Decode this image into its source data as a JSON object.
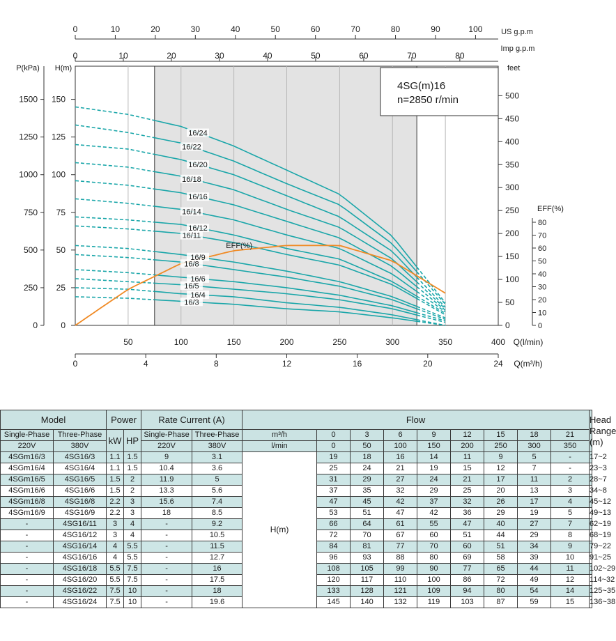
{
  "chart_data": {
    "type": "line",
    "title": "4SG(m)16",
    "subtitle": "n=2850 r/min",
    "operating_range_lmin": [
      75,
      323
    ],
    "axes": {
      "left_pressure": {
        "label": "P(kPa)",
        "ticks": [
          "1500",
          "1250",
          "1000",
          "750",
          "500",
          "250",
          "0"
        ]
      },
      "left_head": {
        "label": "H(m)",
        "ticks": [
          "150",
          "125",
          "100",
          "75",
          "50",
          "25",
          "0"
        ],
        "range": [
          0,
          172
        ]
      },
      "right_feet": {
        "label": "feet",
        "ticks": [
          "500",
          "450",
          "400",
          "350",
          "300",
          "250",
          "200",
          "150",
          "100",
          "50",
          "0"
        ]
      },
      "eff": {
        "label": "EFF(%)",
        "ticks": [
          "80",
          "70",
          "60",
          "50",
          "40",
          "30",
          "20",
          "10",
          "0"
        ]
      },
      "top_us": {
        "label": "US g.p.m",
        "ticks": [
          "0",
          "10",
          "20",
          "30",
          "40",
          "50",
          "60",
          "70",
          "80",
          "90",
          "100"
        ]
      },
      "top_imp": {
        "label": "Imp g.p.m",
        "ticks": [
          "0",
          "10",
          "20",
          "30",
          "40",
          "50",
          "60",
          "70",
          "80"
        ]
      },
      "bottom_lmin": {
        "label": "Q(l/min)",
        "ticks": [
          "50",
          "100",
          "150",
          "200",
          "250",
          "300",
          "350",
          "400"
        ],
        "range": [
          0,
          400
        ]
      },
      "bottom_m3h": {
        "label": "Q(m³/h)",
        "ticks": [
          "0",
          "4",
          "8",
          "12",
          "16",
          "20",
          "24"
        ]
      }
    },
    "x_lmin": [
      0,
      50,
      100,
      150,
      200,
      250,
      300,
      350
    ],
    "series": [
      {
        "name": "16/3",
        "values": [
          19,
          18,
          16,
          14,
          11,
          9,
          5,
          0
        ]
      },
      {
        "name": "16/4",
        "values": [
          25,
          24,
          21,
          19,
          15,
          12,
          7,
          0
        ]
      },
      {
        "name": "16/5",
        "values": [
          31,
          29,
          27,
          24,
          21,
          17,
          11,
          2
        ]
      },
      {
        "name": "16/6",
        "values": [
          37,
          35,
          32,
          29,
          25,
          20,
          13,
          3
        ]
      },
      {
        "name": "16/8",
        "values": [
          47,
          45,
          42,
          37,
          32,
          26,
          17,
          4
        ]
      },
      {
        "name": "16/9",
        "values": [
          53,
          51,
          47,
          42,
          36,
          29,
          19,
          5
        ]
      },
      {
        "name": "16/11",
        "values": [
          66,
          64,
          61,
          55,
          47,
          40,
          27,
          7
        ]
      },
      {
        "name": "16/12",
        "values": [
          72,
          70,
          67,
          60,
          51,
          44,
          29,
          8
        ]
      },
      {
        "name": "16/14",
        "values": [
          84,
          81,
          77,
          70,
          60,
          51,
          34,
          9
        ]
      },
      {
        "name": "16/16",
        "values": [
          96,
          93,
          88,
          80,
          69,
          58,
          39,
          10
        ]
      },
      {
        "name": "16/18",
        "values": [
          108,
          105,
          99,
          90,
          77,
          65,
          44,
          11
        ]
      },
      {
        "name": "16/20",
        "values": [
          120,
          117,
          110,
          100,
          86,
          72,
          49,
          12
        ]
      },
      {
        "name": "16/22",
        "values": [
          133,
          128,
          121,
          109,
          94,
          80,
          54,
          14
        ]
      },
      {
        "name": "16/24",
        "values": [
          145,
          140,
          132,
          119,
          103,
          87,
          59,
          15
        ]
      }
    ],
    "efficiency": {
      "name": "EFF(%)",
      "x_lmin": [
        0,
        50,
        100,
        150,
        200,
        250,
        300,
        350
      ],
      "values": [
        0,
        28,
        48,
        58,
        62,
        62,
        50,
        25
      ]
    }
  },
  "table": {
    "header": {
      "model": "Model",
      "power": "Power",
      "rate_current": "Rate Current (A)",
      "flow": "Flow",
      "head_range": "Head Range (m)",
      "single_phase": "Single-Phase",
      "three_phase": "Three-Phase",
      "v220": "220V",
      "v380": "380V",
      "kw": "kW",
      "hp": "HP",
      "m3h_unit": "m³/h",
      "lmin_unit": "l/min",
      "flow_m3h": [
        "0",
        "3",
        "6",
        "9",
        "12",
        "15",
        "18",
        "21"
      ],
      "flow_lmin": [
        "0",
        "50",
        "100",
        "150",
        "200",
        "250",
        "300",
        "350"
      ],
      "hm": "H(m)"
    },
    "rows": [
      {
        "single": "4SGm16/3",
        "three": "4SG16/3",
        "kw": "1.1",
        "hp": "1.5",
        "cur1": "9",
        "cur3": "3.1",
        "h": [
          "19",
          "18",
          "16",
          "14",
          "11",
          "9",
          "5",
          "-"
        ],
        "range": "17~2"
      },
      {
        "single": "4SGm16/4",
        "three": "4SG16/4",
        "kw": "1.1",
        "hp": "1.5",
        "cur1": "10.4",
        "cur3": "3.6",
        "h": [
          "25",
          "24",
          "21",
          "19",
          "15",
          "12",
          "7",
          "-"
        ],
        "range": "23~3"
      },
      {
        "single": "4SGm16/5",
        "three": "4SG16/5",
        "kw": "1.5",
        "hp": "2",
        "cur1": "11.9",
        "cur3": "5",
        "h": [
          "31",
          "29",
          "27",
          "24",
          "21",
          "17",
          "11",
          "2"
        ],
        "range": "28~7"
      },
      {
        "single": "4SGm16/6",
        "three": "4SG16/6",
        "kw": "1.5",
        "hp": "2",
        "cur1": "13.3",
        "cur3": "5.6",
        "h": [
          "37",
          "35",
          "32",
          "29",
          "25",
          "20",
          "13",
          "3"
        ],
        "range": "34~8"
      },
      {
        "single": "4SGm16/8",
        "three": "4SG16/8",
        "kw": "2.2",
        "hp": "3",
        "cur1": "15.6",
        "cur3": "7.4",
        "h": [
          "47",
          "45",
          "42",
          "37",
          "32",
          "26",
          "17",
          "4"
        ],
        "range": "45~12"
      },
      {
        "single": "4SGm16/9",
        "three": "4SG16/9",
        "kw": "2.2",
        "hp": "3",
        "cur1": "18",
        "cur3": "8.5",
        "h": [
          "53",
          "51",
          "47",
          "42",
          "36",
          "29",
          "19",
          "5"
        ],
        "range": "49~13"
      },
      {
        "single": "-",
        "three": "4SG16/11",
        "kw": "3",
        "hp": "4",
        "cur1": "-",
        "cur3": "9.2",
        "h": [
          "66",
          "64",
          "61",
          "55",
          "47",
          "40",
          "27",
          "7"
        ],
        "range": "62~19"
      },
      {
        "single": "-",
        "three": "4SG16/12",
        "kw": "3",
        "hp": "4",
        "cur1": "-",
        "cur3": "10.5",
        "h": [
          "72",
          "70",
          "67",
          "60",
          "51",
          "44",
          "29",
          "8"
        ],
        "range": "68~19"
      },
      {
        "single": "-",
        "three": "4SG16/14",
        "kw": "4",
        "hp": "5.5",
        "cur1": "-",
        "cur3": "11.5",
        "h": [
          "84",
          "81",
          "77",
          "70",
          "60",
          "51",
          "34",
          "9"
        ],
        "range": "79~22"
      },
      {
        "single": "-",
        "three": "4SG16/16",
        "kw": "4",
        "hp": "5.5",
        "cur1": "-",
        "cur3": "12.7",
        "h": [
          "96",
          "93",
          "88",
          "80",
          "69",
          "58",
          "39",
          "10"
        ],
        "range": "91~25"
      },
      {
        "single": "-",
        "three": "4SG16/18",
        "kw": "5.5",
        "hp": "7.5",
        "cur1": "-",
        "cur3": "16",
        "h": [
          "108",
          "105",
          "99",
          "90",
          "77",
          "65",
          "44",
          "11"
        ],
        "range": "102~29"
      },
      {
        "single": "-",
        "three": "4SG16/20",
        "kw": "5.5",
        "hp": "7.5",
        "cur1": "-",
        "cur3": "17.5",
        "h": [
          "120",
          "117",
          "110",
          "100",
          "86",
          "72",
          "49",
          "12"
        ],
        "range": "114~32"
      },
      {
        "single": "-",
        "three": "4SG16/22",
        "kw": "7.5",
        "hp": "10",
        "cur1": "-",
        "cur3": "18",
        "h": [
          "133",
          "128",
          "121",
          "109",
          "94",
          "80",
          "54",
          "14"
        ],
        "range": "125~35"
      },
      {
        "single": "-",
        "three": "4SG16/24",
        "kw": "7.5",
        "hp": "10",
        "cur1": "-",
        "cur3": "19.6",
        "h": [
          "145",
          "140",
          "132",
          "119",
          "103",
          "87",
          "59",
          "15"
        ],
        "range": "136~38"
      }
    ]
  },
  "colors": {
    "curve": "#1aa6a9",
    "eff": "#f08a24",
    "shade": "#e3e3e3",
    "table_header": "#cbe3e3",
    "table_stripe": "#cde6e6"
  }
}
